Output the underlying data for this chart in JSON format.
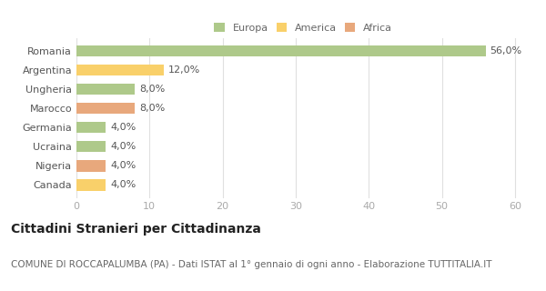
{
  "categories": [
    "Romania",
    "Argentina",
    "Ungheria",
    "Marocco",
    "Germania",
    "Ucraina",
    "Nigeria",
    "Canada"
  ],
  "values": [
    56.0,
    12.0,
    8.0,
    8.0,
    4.0,
    4.0,
    4.0,
    4.0
  ],
  "colors": [
    "#aec98a",
    "#f9d06a",
    "#aec98a",
    "#e8a87c",
    "#aec98a",
    "#aec98a",
    "#e8a87c",
    "#f9d06a"
  ],
  "legend_labels": [
    "Europa",
    "America",
    "Africa"
  ],
  "legend_colors": [
    "#aec98a",
    "#f9d06a",
    "#e8a87c"
  ],
  "xlim": [
    0,
    62
  ],
  "xticks": [
    0,
    10,
    20,
    30,
    40,
    50,
    60
  ],
  "title": "Cittadini Stranieri per Cittadinanza",
  "subtitle": "COMUNE DI ROCCAPALUMBA (PA) - Dati ISTAT al 1° gennaio di ogni anno - Elaborazione TUTTITALIA.IT",
  "title_fontsize": 10,
  "subtitle_fontsize": 7.5,
  "label_fontsize": 8,
  "tick_fontsize": 8,
  "bar_height": 0.6,
  "background_color": "#ffffff",
  "plot_bg_color": "#ffffff",
  "grid_color": "#e0e0e0",
  "value_label_fontsize": 8,
  "value_label_color": "#555555",
  "ytick_color": "#555555",
  "xtick_color": "#aaaaaa"
}
